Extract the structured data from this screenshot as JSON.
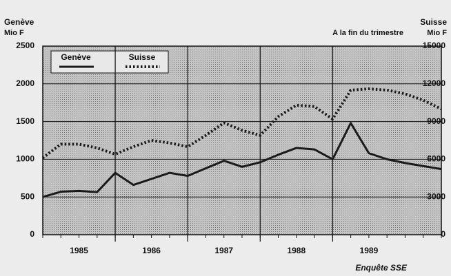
{
  "chart_data": {
    "type": "line",
    "y_label": [
      "Genève",
      "Mio F"
    ],
    "y2_label": [
      "Suisse",
      "Mio F"
    ],
    "annotation": "A la fin du trimestre",
    "source": "Enquête SSE",
    "x": [
      1985,
      1985.25,
      1985.5,
      1985.75,
      1986,
      1986.25,
      1986.5,
      1986.75,
      1987,
      1987.25,
      1987.5,
      1987.75,
      1988,
      1988.25,
      1988.5,
      1988.75,
      1989,
      1989.25,
      1989.5,
      1989.75,
      1990,
      1990.25,
      1990.5
    ],
    "xlim": [
      1985,
      1990.5
    ],
    "x_gridlines": [
      1986,
      1987,
      1988,
      1989
    ],
    "year_labels": [
      {
        "value": 1985.5,
        "label": "1985"
      },
      {
        "value": 1986.5,
        "label": "1986"
      },
      {
        "value": 1987.5,
        "label": "1987"
      },
      {
        "value": 1988.5,
        "label": "1988"
      },
      {
        "value": 1989.5,
        "label": "1989"
      }
    ],
    "ylim": [
      0,
      2500
    ],
    "yticks": [
      0,
      500,
      1000,
      1500,
      2000,
      2500
    ],
    "y2lim": [
      0,
      15000
    ],
    "y2ticks": [
      0,
      3000,
      6000,
      9000,
      12000,
      15000
    ],
    "grid": true,
    "series": [
      {
        "name": "Genève",
        "color": "#1a1a1a",
        "style": "solid",
        "values": [
          500,
          570,
          580,
          565,
          820,
          660,
          740,
          820,
          780,
          880,
          980,
          900,
          960,
          1060,
          1150,
          1130,
          1000,
          1480,
          1080,
          1000,
          950,
          910,
          870
        ]
      },
      {
        "name": "Suisse",
        "color": "#1a1a1a",
        "style": "dotted",
        "axis": "y2",
        "values": [
          6100,
          7200,
          7200,
          6900,
          6400,
          7000,
          7500,
          7300,
          7000,
          7900,
          8900,
          8300,
          7900,
          9400,
          10300,
          10200,
          9200,
          11500,
          11600,
          11500,
          11200,
          10700,
          10000
        ]
      }
    ]
  }
}
